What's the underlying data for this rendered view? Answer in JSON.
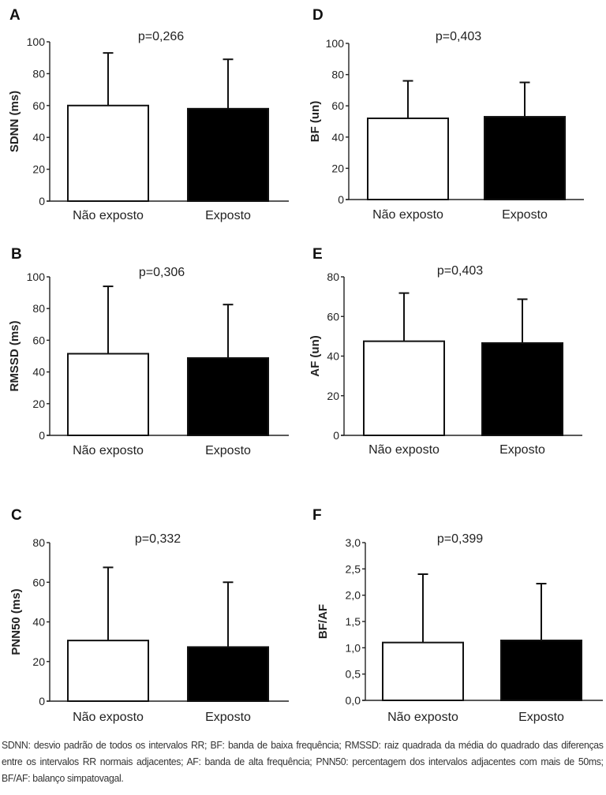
{
  "chart_data": [
    {
      "type": "bar",
      "panel_label": "A",
      "annotation": "p=0,266",
      "ylabel": "SDNN (ms)",
      "xlabel": "",
      "categories": [
        "Não exposto",
        "Exposto"
      ],
      "values": [
        60,
        58
      ],
      "error_upper": [
        93,
        89
      ],
      "bar_colors": [
        "#ffffff",
        "#000000"
      ],
      "ylim": [
        0,
        100
      ],
      "yticks": [
        0,
        20,
        40,
        60,
        80,
        100
      ],
      "ytick_labels": [
        "0",
        "20",
        "40",
        "60",
        "80",
        "100"
      ],
      "grid": false
    },
    {
      "type": "bar",
      "panel_label": "D",
      "annotation": "p=0,403",
      "ylabel": "BF (un)",
      "xlabel": "",
      "categories": [
        "Não exposto",
        "Exposto"
      ],
      "values": [
        52,
        53
      ],
      "error_upper": [
        76,
        75
      ],
      "bar_colors": [
        "#ffffff",
        "#000000"
      ],
      "ylim": [
        0,
        100
      ],
      "yticks": [
        0,
        20,
        40,
        60,
        80,
        100
      ],
      "ytick_labels": [
        "0",
        "20",
        "40",
        "60",
        "80",
        "100"
      ],
      "grid": false
    },
    {
      "type": "bar",
      "panel_label": "B",
      "annotation": "p=0,306",
      "ylabel": "RMSSD (ms)",
      "xlabel": "",
      "categories": [
        "Não exposto",
        "Exposto"
      ],
      "values": [
        51.5,
        48.8
      ],
      "error_upper": [
        94,
        82.5
      ],
      "bar_colors": [
        "#ffffff",
        "#000000"
      ],
      "ylim": [
        0,
        100
      ],
      "yticks": [
        0,
        20,
        40,
        60,
        80,
        100
      ],
      "ytick_labels": [
        "0",
        "20",
        "40",
        "60",
        "80",
        "100"
      ],
      "grid": false
    },
    {
      "type": "bar",
      "panel_label": "E",
      "annotation": "p=0,403",
      "ylabel": "AF (un)",
      "xlabel": "",
      "categories": [
        "Não exposto",
        "Exposto"
      ],
      "values": [
        47.5,
        46.6
      ],
      "error_upper": [
        71.8,
        68.7
      ],
      "bar_colors": [
        "#ffffff",
        "#000000"
      ],
      "ylim": [
        0,
        80
      ],
      "yticks": [
        0,
        20,
        40,
        60,
        80
      ],
      "ytick_labels": [
        "0",
        "20",
        "40",
        "60",
        "80"
      ],
      "grid": false
    },
    {
      "type": "bar",
      "panel_label": "C",
      "annotation": "p=0,332",
      "ylabel": "PNN50 (ms)",
      "xlabel": "",
      "categories": [
        "Não exposto",
        "Exposto"
      ],
      "values": [
        30.6,
        27.3
      ],
      "error_upper": [
        67.5,
        60.0
      ],
      "bar_colors": [
        "#ffffff",
        "#000000"
      ],
      "ylim": [
        0,
        80
      ],
      "yticks": [
        0,
        20,
        40,
        60,
        80
      ],
      "ytick_labels": [
        "0",
        "20",
        "40",
        "60",
        "80"
      ],
      "grid": false
    },
    {
      "type": "bar",
      "panel_label": "F",
      "annotation": "p=0,399",
      "ylabel": "BF/AF",
      "xlabel": "",
      "categories": [
        "Não exposto",
        "Exposto"
      ],
      "values": [
        1.1,
        1.14
      ],
      "error_upper": [
        2.4,
        2.22
      ],
      "bar_colors": [
        "#ffffff",
        "#000000"
      ],
      "ylim": [
        0,
        3.0
      ],
      "yticks": [
        0,
        0.5,
        1.0,
        1.5,
        2.0,
        2.5,
        3.0
      ],
      "ytick_labels": [
        "0,0",
        "0,5",
        "1,0",
        "1,5",
        "2,0",
        "2,5",
        "3,0"
      ],
      "grid": false
    }
  ],
  "caption": "SDNN: desvio padrão de todos os intervalos RR; BF: banda de baixa frequência; RMSSD: raiz quadrada da média do quadrado das diferenças entre os intervalos RR normais adjacentes; AF: banda de alta frequência; PNN50: percentagem dos intervalos adjacentes com mais de 50ms; BF/AF: balanço simpatovagal."
}
